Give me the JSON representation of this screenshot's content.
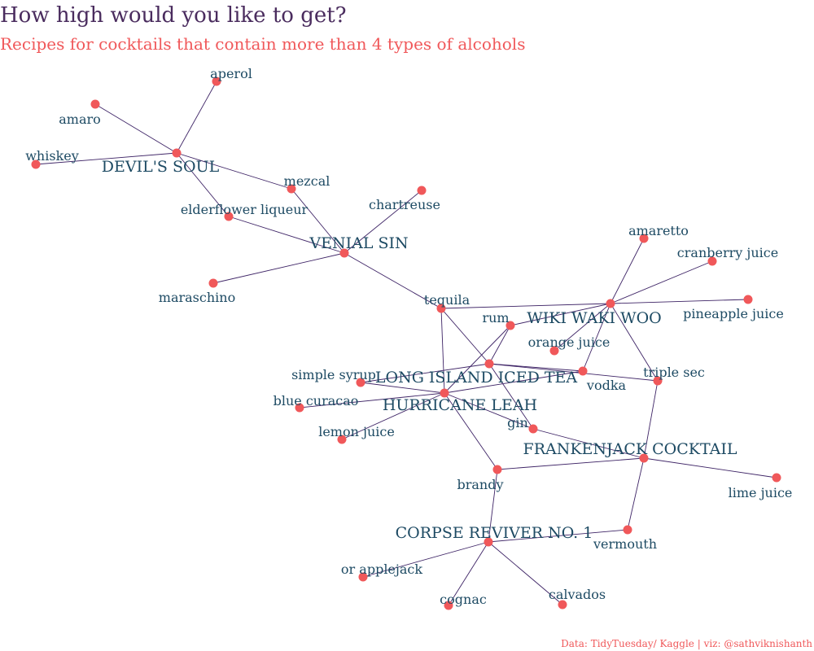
{
  "title": "How high would you like to get?",
  "subtitle": "Recipes for cocktails that contain more than 4 types of alcohols",
  "caption": "Data: TidyTuesday/ Kaggle  | viz: @sathviknishanth",
  "colors": {
    "node": "#f0585a",
    "edge": "#3e2466",
    "label": "#1d4a63",
    "title": "#4a2c5e",
    "subtitle": "#f0585a"
  },
  "cocktails": [
    {
      "name": "DEVIL'S SOUL",
      "ingredients": [
        "aperol",
        "amaro",
        "whiskey",
        "mezcal",
        "elderflower liqueur"
      ]
    },
    {
      "name": "VENIAL SIN",
      "ingredients": [
        "mezcal",
        "elderflower liqueur",
        "chartreuse",
        "maraschino",
        "tequila"
      ]
    },
    {
      "name": "WIKI WAKI WOO",
      "ingredients": [
        "amaretto",
        "cranberry juice",
        "pineapple juice",
        "tequila",
        "rum",
        "orange juice",
        "vodka",
        "triple sec"
      ]
    },
    {
      "name": "LONG ISLAND ICED TEA",
      "ingredients": [
        "simple syrup",
        "tequila",
        "rum",
        "vodka",
        "gin",
        "triple sec"
      ]
    },
    {
      "name": "HURRICANE LEAH",
      "ingredients": [
        "blue curacao",
        "lemon juice",
        "simple syrup",
        "tequila",
        "rum",
        "gin",
        "brandy",
        "vodka"
      ]
    },
    {
      "name": "FRANKENJACK COCKTAIL",
      "ingredients": [
        "gin",
        "brandy",
        "triple sec",
        "lime juice",
        "vermouth"
      ]
    },
    {
      "name": "CORPSE REVIVER NO. 1",
      "ingredients": [
        "brandy",
        "vermouth",
        "or applejack",
        "cognac",
        "calvados"
      ]
    }
  ]
}
